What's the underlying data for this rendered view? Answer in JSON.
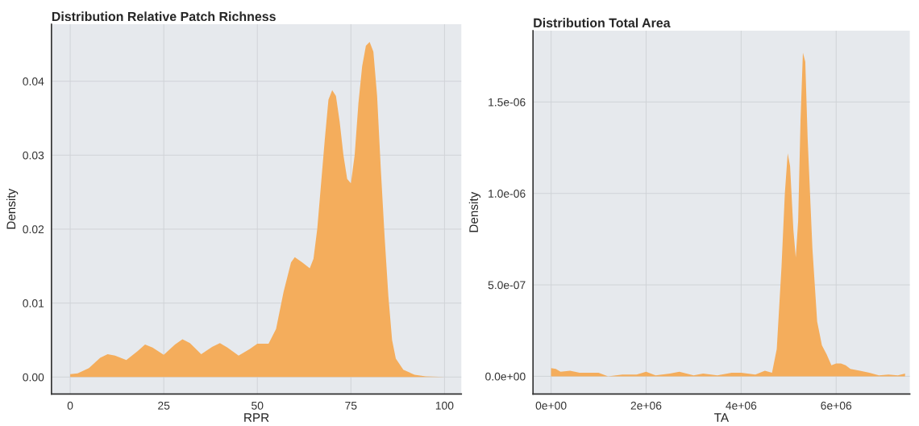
{
  "chart_data": [
    {
      "type": "area",
      "title": "Distribution Relative Patch Richness",
      "xlabel": "RPR",
      "ylabel": "Density",
      "x": [
        0,
        2,
        5,
        8,
        10,
        12,
        15,
        18,
        20,
        22,
        25,
        28,
        30,
        32,
        35,
        38,
        40,
        42,
        45,
        48,
        50,
        53,
        55,
        57,
        59,
        60,
        62,
        64,
        65,
        66,
        67,
        68,
        69,
        70,
        71,
        72,
        73,
        74,
        75,
        76,
        77,
        78,
        79,
        80,
        81,
        82,
        83,
        84,
        85,
        86,
        87,
        89,
        92,
        95,
        100
      ],
      "series": [
        {
          "color": "#f4ad5c",
          "values": [
            0.0004,
            0.0005,
            0.0012,
            0.0026,
            0.0031,
            0.0029,
            0.0023,
            0.0035,
            0.0044,
            0.004,
            0.003,
            0.0044,
            0.0051,
            0.0046,
            0.0031,
            0.0041,
            0.0046,
            0.004,
            0.0029,
            0.0038,
            0.0045,
            0.0045,
            0.0065,
            0.0115,
            0.0155,
            0.0162,
            0.0155,
            0.0147,
            0.016,
            0.02,
            0.026,
            0.032,
            0.0375,
            0.0388,
            0.038,
            0.0345,
            0.03,
            0.0268,
            0.0262,
            0.03,
            0.037,
            0.042,
            0.0448,
            0.0453,
            0.044,
            0.038,
            0.028,
            0.019,
            0.011,
            0.005,
            0.0025,
            0.001,
            0.0003,
            0.0001,
            0.0
          ]
        }
      ],
      "xlim": [
        -5,
        104.5
      ],
      "xticks": [
        0,
        25,
        50,
        75,
        100
      ],
      "ylim": [
        -0.0023,
        0.0477
      ],
      "yticks": [
        {
          "value": 0,
          "label": "0.00"
        },
        {
          "value": 0.01,
          "label": "0.01"
        },
        {
          "value": 0.02,
          "label": "0.02"
        },
        {
          "value": 0.03,
          "label": "0.03"
        },
        {
          "value": 0.04,
          "label": "0.04"
        }
      ],
      "grid": true
    },
    {
      "type": "area",
      "title": "Distribution Total Area",
      "xlabel": "TA",
      "ylabel": "Density",
      "x": [
        0,
        100000,
        200000,
        400000,
        600000,
        800000,
        1000000,
        1200000,
        1500000,
        1800000,
        2000000,
        2200000,
        2500000,
        2700000,
        3000000,
        3200000,
        3500000,
        3800000,
        4000000,
        4300000,
        4500000,
        4650000,
        4750000,
        4850000,
        4920000,
        4980000,
        5030000,
        5100000,
        5150000,
        5200000,
        5250000,
        5300000,
        5350000,
        5400000,
        5500000,
        5600000,
        5700000,
        5800000,
        5900000,
        6000000,
        6100000,
        6200000,
        6300000,
        6500000,
        6700000,
        6900000,
        7100000,
        7300000,
        7450000
      ],
      "series": [
        {
          "color": "#f4ad5c",
          "values": [
            4.5e-08,
            4e-08,
            2.5e-08,
            3e-08,
            2e-08,
            2e-08,
            2e-08,
            0.0,
            1e-08,
            1e-08,
            2.5e-08,
            5e-09,
            1.5e-08,
            2.5e-08,
            5e-09,
            1.5e-08,
            5e-09,
            2e-08,
            2e-08,
            1e-08,
            3e-08,
            2e-08,
            1.5e-07,
            6e-07,
            1e-06,
            1.22e-06,
            1.15e-06,
            8e-07,
            6.5e-07,
            8.5e-07,
            1.4e-06,
            1.77e-06,
            1.72e-06,
            1.3e-06,
            7e-07,
            3e-07,
            1.7e-07,
            1.2e-07,
            6e-08,
            7e-08,
            7e-08,
            6e-08,
            4e-08,
            3e-08,
            2e-08,
            5e-09,
            1e-08,
            5e-09,
            1.5e-08
          ]
        }
      ],
      "xlim": [
        -380000,
        7550000
      ],
      "xticks": [
        {
          "value": 0,
          "label": "0e+00"
        },
        {
          "value": 2000000,
          "label": "2e+06"
        },
        {
          "value": 4000000,
          "label": "4e+06"
        },
        {
          "value": 6000000,
          "label": "6e+06"
        }
      ],
      "ylim": [
        -9.7e-08,
        1.89e-06
      ],
      "yticks": [
        {
          "value": 0,
          "label": "0.0e+00"
        },
        {
          "value": 5e-07,
          "label": "5.0e-07"
        },
        {
          "value": 1e-06,
          "label": "1.0e-06"
        },
        {
          "value": 1.5e-06,
          "label": "1.5e-06"
        }
      ],
      "grid": true
    }
  ]
}
